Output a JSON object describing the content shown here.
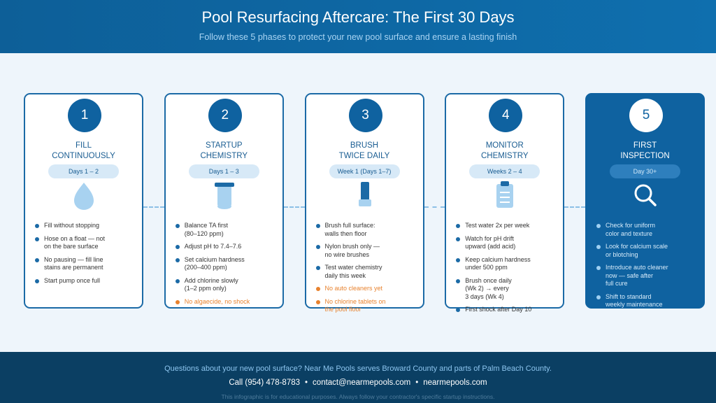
{
  "header": {
    "title": "Pool Resurfacing Aftercare: The First 30 Days",
    "subtitle": "Follow these 5 phases to protect your new pool surface and ensure a lasting finish"
  },
  "cards": [
    {
      "number": "1",
      "title": "FILL\nCONTINUOUSLY",
      "period": "Days 1 – 2",
      "bullets": [
        "Fill without stopping",
        "Hose on a float — not\non the bare surface",
        "No pausing — fill line\nstains are permanent",
        "Start pump once full"
      ],
      "warnings": []
    },
    {
      "number": "2",
      "title": "STARTUP\nCHEMISTRY",
      "period": "Days 1 – 3",
      "bullets": [
        "Balance TA first\n(80–120 ppm)",
        "Adjust pH to 7.4–7.6",
        "Set calcium hardness\n(200–400 ppm)",
        "Add chlorine slowly\n(1–2 ppm only)"
      ],
      "warnings": [
        "No algaecide, no shock"
      ]
    },
    {
      "number": "3",
      "title": "BRUSH\nTWICE DAILY",
      "period": "Week 1 (Days 1–7)",
      "bullets": [
        "Brush full surface:\nwalls then floor",
        "Nylon brush only —\nno wire brushes",
        "Test water chemistry\ndaily this week"
      ],
      "warnings": [
        "No auto cleaners yet",
        "No chlorine tablets on\nthe pool floor"
      ]
    },
    {
      "number": "4",
      "title": "MONITOR\nCHEMISTRY",
      "period": "Weeks 2 – 4",
      "bullets": [
        "Test water 2x per week",
        "Watch for pH drift\nupward (add acid)",
        "Keep calcium hardness\nunder 500 ppm",
        "Brush once daily\n(Wk 2) → every\n3 days (Wk 4)",
        "First shock after Day 10"
      ],
      "warnings": []
    },
    {
      "number": "5",
      "title": "FIRST\nINSPECTION",
      "period": "Day 30+",
      "bullets": [
        "Check for uniform\ncolor and texture",
        "Look for calcium scale\nor blotching",
        "Introduce auto cleaner\nnow — safe after\nfull cure",
        "Shift to standard\nweekly maintenance"
      ],
      "warnings": []
    }
  ],
  "footer": {
    "question": "Questions about your new pool surface? Near Me Pools serves Broward County and parts of Palm Beach County.",
    "contacts": [
      "Call (954) 478-8783",
      "contact@nearmepools.com",
      "nearmepools.com"
    ],
    "separator": "•",
    "disclaimer": "This infographic is for educational purposes. Always follow your contractor's specific startup instructions."
  }
}
